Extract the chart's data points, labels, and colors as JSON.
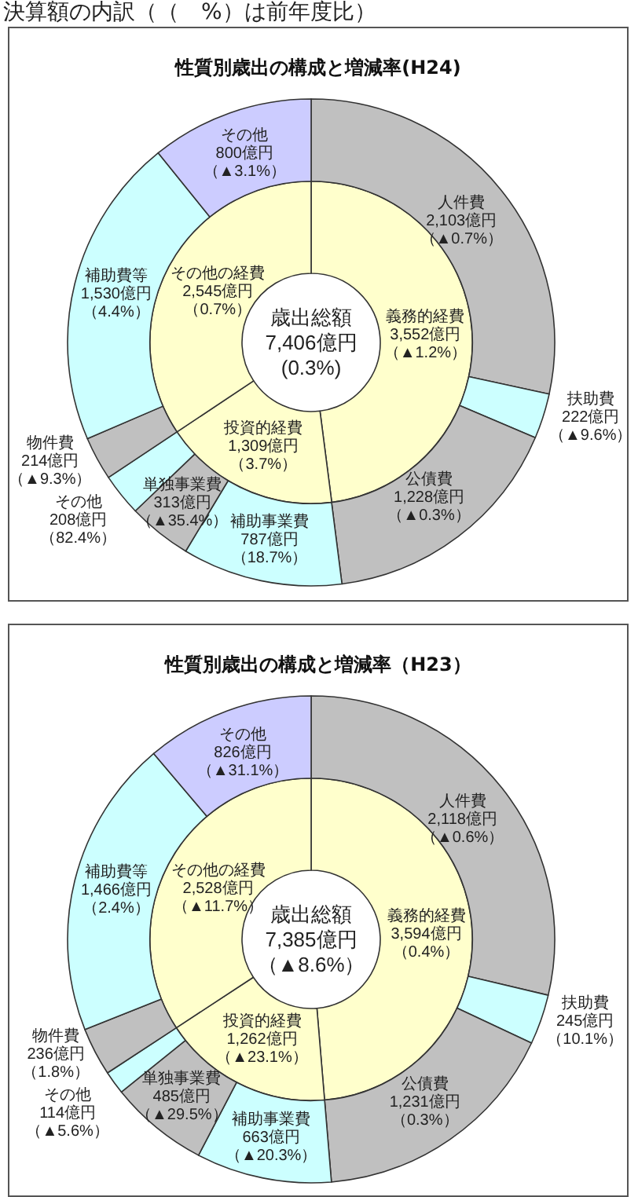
{
  "chart_data": [
    {
      "type": "donut",
      "title": "性質別歳出の構成と増減率(H24)",
      "annotations": [
        "決算額の内訳（（　%）は前年度比）"
      ],
      "categories": [
        "人件費",
        "扶助費",
        "公債費",
        "補助事業費",
        "単独事業費",
        "その他",
        "物件費",
        "補助費等",
        "その他"
      ],
      "values": [
        2103,
        222,
        1228,
        787,
        313,
        208,
        214,
        1530,
        800
      ],
      "colors": [
        "#c0c0c0",
        "#ccffff",
        "#c0c0c0",
        "#ccffff",
        "#c0c0c0",
        "#ccffff",
        "#c0c0c0",
        "#ccffff",
        "#ccccff"
      ],
      "value_labels": [
        "2,103億円（▲0.7%）",
        "222億円（▲9.6%）",
        "1,228億円（▲0.3%）",
        "787億円（18.7%）",
        "313億円（▲35.4%）",
        "208億円（82.4%）",
        "214億円（▲9.3%）",
        "1,530億円（4.4%）",
        "800億円（▲3.1%）"
      ]
    },
    {
      "type": "donut",
      "annotations": [
        "歳出総額7,406億円(0.3%)"
      ],
      "categories": [
        "義務的経費",
        "投資的経費",
        "その他の経費"
      ],
      "values": [
        3552,
        1309,
        2545
      ],
      "colors": [
        "#ffffcc",
        "#ffffcc",
        "#ffffcc"
      ],
      "value_labels": [
        "3,552億円（▲1.2%）",
        "1,309億円（3.7%）",
        "2,545億円（0.7%）"
      ]
    },
    {
      "type": "donut",
      "title": "性質別歳出の構成と増減率（H23）",
      "categories": [
        "人件費",
        "扶助費",
        "公債費",
        "補助事業費",
        "単独事業費",
        "その他",
        "物件費",
        "補助費等",
        "その他"
      ],
      "values": [
        2118,
        245,
        1231,
        663,
        485,
        114,
        236,
        1466,
        826
      ],
      "colors": [
        "#c0c0c0",
        "#ccffff",
        "#c0c0c0",
        "#ccffff",
        "#c0c0c0",
        "#ccffff",
        "#c0c0c0",
        "#ccffff",
        "#ccccff"
      ],
      "value_labels": [
        "2,118億円（▲0.6%）",
        "245億円（10.1%）",
        "1,231億円（0.3%）",
        "663億円（▲20.3%）",
        "485億円（▲29.5%）",
        "114億円（▲5.6%）",
        "236億円（1.8%）",
        "1,466億円（2.4%）",
        "826億円（▲31.1%）"
      ]
    },
    {
      "type": "donut",
      "annotations": [
        "歳出総額7,385億円（▲8.6%）"
      ],
      "categories": [
        "義務的経費",
        "投資的経費",
        "その他の経費"
      ],
      "values": [
        3594,
        1262,
        2528
      ],
      "colors": [
        "#ffffcc",
        "#ffffcc",
        "#ffffcc"
      ],
      "value_labels": [
        "3,594億円（0.4%）",
        "1,262億円（▲23.1%）",
        "2,528億円（▲11.7%）"
      ]
    }
  ]
}
